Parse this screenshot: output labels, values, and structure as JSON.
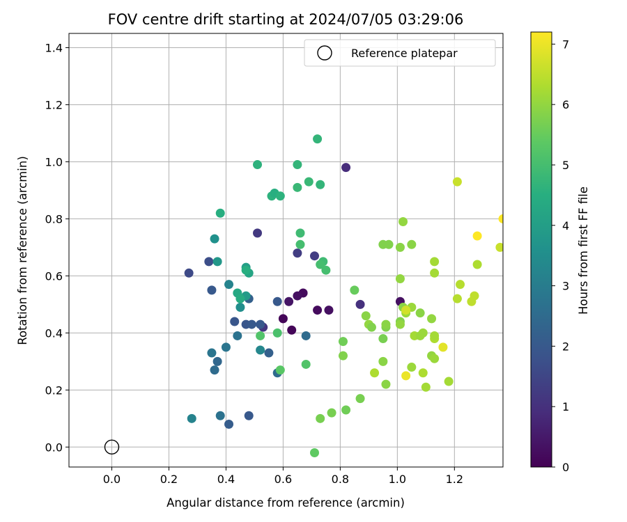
{
  "chart_data": {
    "type": "scatter",
    "title": "FOV centre drift starting at 2024/07/05 03:29:06",
    "xlabel": "Angular distance from reference (arcmin)",
    "ylabel": "Rotation from reference (arcmin)",
    "xlim": [
      -0.15,
      1.37
    ],
    "ylim": [
      -0.07,
      1.45
    ],
    "xticks": [
      "0.0",
      "0.2",
      "0.4",
      "0.6",
      "0.8",
      "1.0",
      "1.2"
    ],
    "yticks": [
      "0.0",
      "0.2",
      "0.4",
      "0.6",
      "0.8",
      "1.0",
      "1.2",
      "1.4"
    ],
    "grid": true,
    "legend": {
      "placement": "top-right",
      "entries": [
        "Reference platepar"
      ]
    },
    "reference_point": {
      "x": 0.0,
      "y": 0.0,
      "marker": "hollow-circle"
    },
    "colorbar": {
      "label": "Hours from first FF file",
      "min": 0,
      "max": 7.2,
      "ticks": [
        "0",
        "1",
        "2",
        "3",
        "4",
        "5",
        "6",
        "7"
      ],
      "colormap": "viridis"
    },
    "points": [
      {
        "x": 0.6,
        "y": 0.45,
        "h": 0.1
      },
      {
        "x": 0.63,
        "y": 0.41,
        "h": 0.1
      },
      {
        "x": 0.67,
        "y": 0.54,
        "h": 0.2
      },
      {
        "x": 0.65,
        "y": 0.53,
        "h": 0.3
      },
      {
        "x": 0.72,
        "y": 0.48,
        "h": 0.2
      },
      {
        "x": 0.76,
        "y": 0.48,
        "h": 0.3
      },
      {
        "x": 0.62,
        "y": 0.51,
        "h": 0.4
      },
      {
        "x": 1.01,
        "y": 0.51,
        "h": 0.3
      },
      {
        "x": 0.82,
        "y": 0.98,
        "h": 0.9
      },
      {
        "x": 0.51,
        "y": 0.75,
        "h": 1.2
      },
      {
        "x": 0.53,
        "y": 0.42,
        "h": 1.1
      },
      {
        "x": 0.71,
        "y": 0.67,
        "h": 1.3
      },
      {
        "x": 0.65,
        "y": 0.68,
        "h": 1.3
      },
      {
        "x": 0.87,
        "y": 0.5,
        "h": 1.0
      },
      {
        "x": 0.27,
        "y": 0.61,
        "h": 1.6
      },
      {
        "x": 0.34,
        "y": 0.65,
        "h": 1.7
      },
      {
        "x": 0.43,
        "y": 0.44,
        "h": 1.9
      },
      {
        "x": 0.47,
        "y": 0.43,
        "h": 1.9
      },
      {
        "x": 0.49,
        "y": 0.43,
        "h": 2.0
      },
      {
        "x": 0.52,
        "y": 0.43,
        "h": 2.0
      },
      {
        "x": 0.35,
        "y": 0.55,
        "h": 2.0
      },
      {
        "x": 0.58,
        "y": 0.51,
        "h": 2.0
      },
      {
        "x": 0.55,
        "y": 0.33,
        "h": 2.2
      },
      {
        "x": 0.48,
        "y": 0.52,
        "h": 2.2
      },
      {
        "x": 0.48,
        "y": 0.11,
        "h": 2.0
      },
      {
        "x": 0.41,
        "y": 0.08,
        "h": 2.1
      },
      {
        "x": 0.37,
        "y": 0.3,
        "h": 2.4
      },
      {
        "x": 0.36,
        "y": 0.27,
        "h": 2.5
      },
      {
        "x": 0.58,
        "y": 0.26,
        "h": 2.5
      },
      {
        "x": 0.68,
        "y": 0.39,
        "h": 2.5
      },
      {
        "x": 0.44,
        "y": 0.39,
        "h": 2.7
      },
      {
        "x": 0.4,
        "y": 0.35,
        "h": 2.8
      },
      {
        "x": 0.35,
        "y": 0.33,
        "h": 2.8
      },
      {
        "x": 0.38,
        "y": 0.11,
        "h": 2.7
      },
      {
        "x": 0.28,
        "y": 0.1,
        "h": 3.2
      },
      {
        "x": 0.41,
        "y": 0.57,
        "h": 3.2
      },
      {
        "x": 0.52,
        "y": 0.34,
        "h": 3.3
      },
      {
        "x": 0.45,
        "y": 0.49,
        "h": 3.5
      },
      {
        "x": 0.36,
        "y": 0.73,
        "h": 3.6
      },
      {
        "x": 0.37,
        "y": 0.65,
        "h": 3.8
      },
      {
        "x": 0.47,
        "y": 0.53,
        "h": 3.9
      },
      {
        "x": 0.47,
        "y": 0.63,
        "h": 4.0
      },
      {
        "x": 0.48,
        "y": 0.61,
        "h": 4.2
      },
      {
        "x": 0.44,
        "y": 0.54,
        "h": 4.3
      },
      {
        "x": 0.45,
        "y": 0.52,
        "h": 4.4
      },
      {
        "x": 0.38,
        "y": 0.82,
        "h": 4.5
      },
      {
        "x": 0.47,
        "y": 0.62,
        "h": 4.5
      },
      {
        "x": 0.51,
        "y": 0.99,
        "h": 4.6
      },
      {
        "x": 0.56,
        "y": 0.88,
        "h": 4.6
      },
      {
        "x": 0.57,
        "y": 0.89,
        "h": 4.5
      },
      {
        "x": 0.59,
        "y": 0.88,
        "h": 4.6
      },
      {
        "x": 0.65,
        "y": 0.99,
        "h": 4.7
      },
      {
        "x": 0.72,
        "y": 1.08,
        "h": 4.7
      },
      {
        "x": 0.65,
        "y": 0.91,
        "h": 4.8
      },
      {
        "x": 0.69,
        "y": 0.93,
        "h": 4.8
      },
      {
        "x": 0.73,
        "y": 0.92,
        "h": 4.7
      },
      {
        "x": 0.66,
        "y": 0.75,
        "h": 4.9
      },
      {
        "x": 0.66,
        "y": 0.71,
        "h": 5.0
      },
      {
        "x": 0.74,
        "y": 0.65,
        "h": 4.9
      },
      {
        "x": 0.73,
        "y": 0.64,
        "h": 5.0
      },
      {
        "x": 0.75,
        "y": 0.62,
        "h": 5.0
      },
      {
        "x": 0.58,
        "y": 0.4,
        "h": 5.1
      },
      {
        "x": 0.52,
        "y": 0.39,
        "h": 5.2
      },
      {
        "x": 0.68,
        "y": 0.29,
        "h": 5.2
      },
      {
        "x": 0.59,
        "y": 0.27,
        "h": 5.3
      },
      {
        "x": 0.85,
        "y": 0.55,
        "h": 5.5
      },
      {
        "x": 0.81,
        "y": 0.37,
        "h": 5.6
      },
      {
        "x": 0.71,
        "y": -0.02,
        "h": 5.4
      },
      {
        "x": 0.73,
        "y": 0.1,
        "h": 5.7
      },
      {
        "x": 0.77,
        "y": 0.12,
        "h": 5.7
      },
      {
        "x": 0.82,
        "y": 0.13,
        "h": 5.6
      },
      {
        "x": 0.87,
        "y": 0.17,
        "h": 5.7
      },
      {
        "x": 0.81,
        "y": 0.32,
        "h": 5.8
      },
      {
        "x": 0.95,
        "y": 0.38,
        "h": 5.7
      },
      {
        "x": 0.95,
        "y": 0.3,
        "h": 5.9
      },
      {
        "x": 0.89,
        "y": 0.46,
        "h": 5.9
      },
      {
        "x": 0.9,
        "y": 0.43,
        "h": 6.0
      },
      {
        "x": 0.91,
        "y": 0.42,
        "h": 5.8
      },
      {
        "x": 0.96,
        "y": 0.42,
        "h": 5.8
      },
      {
        "x": 0.96,
        "y": 0.43,
        "h": 5.9
      },
      {
        "x": 0.95,
        "y": 0.71,
        "h": 5.8
      },
      {
        "x": 0.97,
        "y": 0.71,
        "h": 5.8
      },
      {
        "x": 1.01,
        "y": 0.7,
        "h": 5.9
      },
      {
        "x": 1.05,
        "y": 0.71,
        "h": 5.9
      },
      {
        "x": 1.02,
        "y": 0.79,
        "h": 6.0
      },
      {
        "x": 1.01,
        "y": 0.59,
        "h": 6.0
      },
      {
        "x": 1.01,
        "y": 0.44,
        "h": 5.8
      },
      {
        "x": 1.01,
        "y": 0.43,
        "h": 6.0
      },
      {
        "x": 1.02,
        "y": 0.49,
        "h": 5.9
      },
      {
        "x": 1.03,
        "y": 0.47,
        "h": 6.1
      },
      {
        "x": 1.05,
        "y": 0.49,
        "h": 6.1
      },
      {
        "x": 1.06,
        "y": 0.39,
        "h": 6.2
      },
      {
        "x": 1.08,
        "y": 0.47,
        "h": 5.9
      },
      {
        "x": 1.08,
        "y": 0.39,
        "h": 6.1
      },
      {
        "x": 1.09,
        "y": 0.4,
        "h": 6.1
      },
      {
        "x": 1.12,
        "y": 0.45,
        "h": 6.0
      },
      {
        "x": 1.12,
        "y": 0.32,
        "h": 6.0
      },
      {
        "x": 1.13,
        "y": 0.31,
        "h": 6.1
      },
      {
        "x": 1.13,
        "y": 0.38,
        "h": 6.3
      },
      {
        "x": 1.13,
        "y": 0.39,
        "h": 6.2
      },
      {
        "x": 1.05,
        "y": 0.28,
        "h": 6.1
      },
      {
        "x": 1.09,
        "y": 0.26,
        "h": 6.3
      },
      {
        "x": 1.1,
        "y": 0.21,
        "h": 6.2
      },
      {
        "x": 0.92,
        "y": 0.26,
        "h": 6.3
      },
      {
        "x": 0.96,
        "y": 0.22,
        "h": 5.9
      },
      {
        "x": 1.18,
        "y": 0.23,
        "h": 6.2
      },
      {
        "x": 1.13,
        "y": 0.65,
        "h": 6.2
      },
      {
        "x": 1.13,
        "y": 0.61,
        "h": 6.2
      },
      {
        "x": 1.22,
        "y": 0.57,
        "h": 6.4
      },
      {
        "x": 1.21,
        "y": 0.52,
        "h": 6.4
      },
      {
        "x": 1.26,
        "y": 0.51,
        "h": 6.5
      },
      {
        "x": 1.27,
        "y": 0.53,
        "h": 6.5
      },
      {
        "x": 1.28,
        "y": 0.64,
        "h": 6.3
      },
      {
        "x": 1.21,
        "y": 0.93,
        "h": 6.6
      },
      {
        "x": 1.16,
        "y": 0.35,
        "h": 6.9
      },
      {
        "x": 1.03,
        "y": 0.25,
        "h": 7.0
      },
      {
        "x": 1.03,
        "y": 0.48,
        "h": 6.7
      },
      {
        "x": 1.28,
        "y": 0.74,
        "h": 7.2
      },
      {
        "x": 1.36,
        "y": 0.7,
        "h": 6.6
      },
      {
        "x": 1.37,
        "y": 0.8,
        "h": 7.2
      }
    ]
  }
}
